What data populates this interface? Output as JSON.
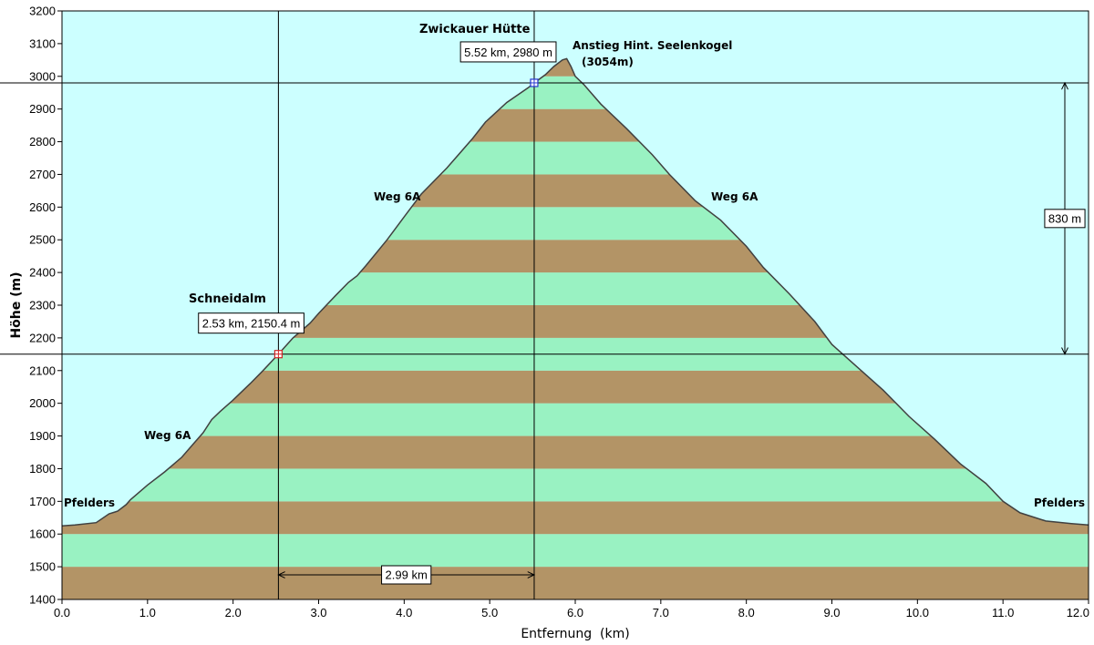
{
  "chart_data": {
    "type": "area",
    "xlabel": "Entfernung  (km)",
    "ylabel": "Höhe (m)",
    "xlim": [
      0,
      12
    ],
    "ylim": [
      1400,
      3200
    ],
    "x_ticks": [
      0,
      1,
      2,
      3,
      4,
      5,
      6,
      7,
      8,
      9,
      10,
      11,
      12
    ],
    "y_ticks": [
      1400,
      1500,
      1600,
      1700,
      1800,
      1900,
      2000,
      2100,
      2200,
      2300,
      2400,
      2500,
      2600,
      2700,
      2800,
      2900,
      3000,
      3100,
      3200
    ],
    "x_tick_labels": [
      "0.0",
      "1.0",
      "2.0",
      "3.0",
      "4.0",
      "5.0",
      "6.0",
      "7.0",
      "8.0",
      "9.0",
      "10.0",
      "11.0",
      "12.0"
    ],
    "y_tick_labels": [
      "1400",
      "1500",
      "1600",
      "1700",
      "1800",
      "1900",
      "2000",
      "2100",
      "2200",
      "2300",
      "2400",
      "2500",
      "2600",
      "2700",
      "2800",
      "2900",
      "3000",
      "3100",
      "3200"
    ],
    "band_height_m": 100,
    "profile": {
      "x": [
        0,
        0.15,
        0.4,
        0.55,
        0.65,
        0.75,
        0.8,
        1.0,
        1.2,
        1.4,
        1.55,
        1.65,
        1.75,
        1.85,
        2.0,
        2.2,
        2.35,
        2.53,
        2.7,
        2.9,
        3.0,
        3.2,
        3.35,
        3.45,
        3.55,
        3.8,
        4.0,
        4.2,
        4.5,
        4.8,
        4.95,
        5.2,
        5.45,
        5.52,
        5.65,
        5.75,
        5.85,
        5.9,
        5.95,
        6.0,
        6.1,
        6.3,
        6.6,
        6.9,
        7.1,
        7.4,
        7.7,
        8.0,
        8.2,
        8.5,
        8.8,
        9.0,
        9.3,
        9.6,
        9.9,
        10.2,
        10.5,
        10.8,
        11.0,
        11.2,
        11.5,
        11.8,
        12.0
      ],
      "y": [
        1625,
        1628,
        1635,
        1662,
        1670,
        1690,
        1705,
        1750,
        1790,
        1835,
        1880,
        1910,
        1950,
        1975,
        2010,
        2060,
        2100,
        2150.4,
        2200,
        2245,
        2275,
        2330,
        2370,
        2390,
        2420,
        2500,
        2570,
        2640,
        2720,
        2810,
        2860,
        2920,
        2965,
        2980,
        3005,
        3030,
        3050,
        3054,
        3030,
        3000,
        2975,
        2915,
        2840,
        2760,
        2700,
        2620,
        2560,
        2480,
        2415,
        2335,
        2250,
        2180,
        2110,
        2040,
        1960,
        1890,
        1815,
        1755,
        1700,
        1665,
        1640,
        1632,
        1628
      ]
    },
    "markers": [
      {
        "x": 2.53,
        "y": 2150.4,
        "label": "2.53 km, 2150.4 m",
        "name": "Schneidalm",
        "color": "#d02828"
      },
      {
        "x": 5.52,
        "y": 2980,
        "label": "5.52 km, 2980 m",
        "name": "Zwickauer Hütte",
        "color": "#2838d0"
      }
    ],
    "distance_label": "2.99 km",
    "elevation_diff_label": "830 m",
    "annotations": {
      "pfelders_left": "Pfelders",
      "pfelders_right": "Pfelders",
      "weg_lower_left": "Weg 6A",
      "weg_upper_left": "Weg 6A",
      "weg_right": "Weg 6A",
      "anstieg_line1": "Anstieg Hint. Seelenkogel",
      "anstieg_line2": "(3054m)"
    },
    "colors": {
      "sky": "#ccffff",
      "band_brown": "#b39466",
      "band_green": "#99f2c2",
      "outline": "#404040"
    }
  }
}
